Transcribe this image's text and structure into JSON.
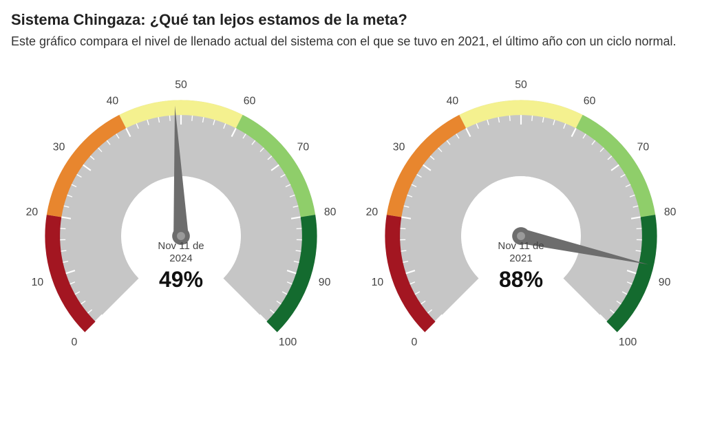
{
  "title": "Sistema Chingaza: ¿Qué tan lejos estamos de la meta?",
  "subtitle": "Este gráfico compara el nivel de llenado actual del sistema con el que se tuvo en 2021, el último año con un ciclo normal.",
  "gauge_config": {
    "type": "gauge",
    "min": 0,
    "max": 100,
    "start_angle_deg": 225,
    "end_angle_deg": -45,
    "outer_radius": 200,
    "band_width": 22,
    "tick_outer_radius": 178,
    "tick_len_major": 14,
    "tick_len_minor": 8,
    "inner_hub_radius": 88,
    "needle_len": 192,
    "label_radius": 222,
    "ticks_major": [
      0,
      10,
      20,
      30,
      40,
      50,
      60,
      70,
      80,
      90,
      100
    ],
    "ticks_minor_step": 2,
    "bands": [
      {
        "from": 0,
        "to": 20,
        "color": "#a31621"
      },
      {
        "from": 20,
        "to": 40,
        "color": "#e8862e"
      },
      {
        "from": 40,
        "to": 60,
        "color": "#f4f18f"
      },
      {
        "from": 60,
        "to": 80,
        "color": "#8fce6a"
      },
      {
        "from": 80,
        "to": 100,
        "color": "#146b2f"
      }
    ],
    "dial_bg_color": "#c6c6c6",
    "inner_bg_color": "#ffffff",
    "needle_color": "#6d6d6d",
    "tick_color": "#ffffff",
    "label_color": "#444444",
    "center_top_offset_pct": 60
  },
  "gauges": [
    {
      "id": "gauge-2024",
      "date_line1": "Nov 11 de",
      "date_line2": "2024",
      "value": 49,
      "value_text": "49%"
    },
    {
      "id": "gauge-2021",
      "date_line1": "Nov 11 de",
      "date_line2": "2021",
      "value": 88,
      "value_text": "88%"
    }
  ]
}
